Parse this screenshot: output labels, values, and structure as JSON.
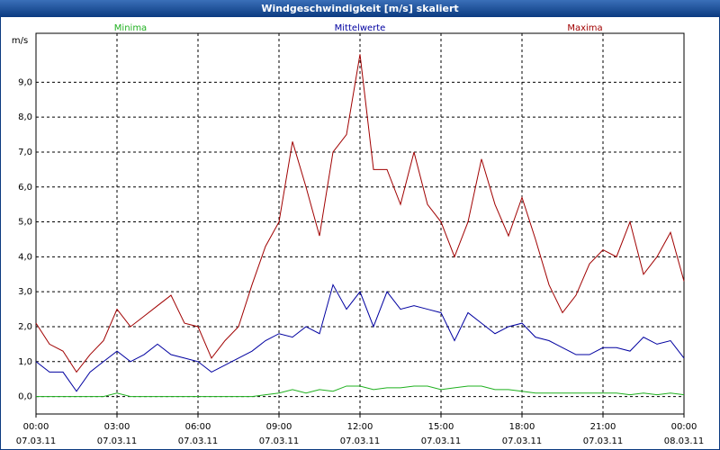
{
  "chart_data": {
    "type": "line",
    "title": "Windgeschwindigkeit [m/s] skaliert",
    "ylabel": "m/s",
    "legend": "top",
    "grid": true,
    "x": [
      0,
      0.5,
      1,
      1.5,
      2,
      2.5,
      3,
      3.5,
      4,
      4.5,
      5,
      5.5,
      6,
      6.5,
      7,
      7.5,
      8,
      8.5,
      9,
      9.5,
      10,
      10.5,
      11,
      11.5,
      12,
      12.5,
      13,
      13.5,
      14,
      14.5,
      15,
      15.5,
      16,
      16.5,
      17,
      17.5,
      18,
      18.5,
      19,
      19.5,
      20,
      20.5,
      21,
      21.5,
      22,
      22.5,
      23,
      23.5,
      24
    ],
    "xlim": [
      0,
      24
    ],
    "xticks": [
      {
        "value": 0,
        "label": "00:00\n07.03.11"
      },
      {
        "value": 3,
        "label": "03:00\n07.03.11"
      },
      {
        "value": 6,
        "label": "06:00\n07.03.11"
      },
      {
        "value": 9,
        "label": "09:00\n07.03.11"
      },
      {
        "value": 12,
        "label": "12:00\n07.03.11"
      },
      {
        "value": 15,
        "label": "15:00\n07.03.11"
      },
      {
        "value": 18,
        "label": "18:00\n07.03.11"
      },
      {
        "value": 21,
        "label": "21:00\n07.03.11"
      },
      {
        "value": 24,
        "label": "00:00\n08.03.11"
      }
    ],
    "ylim": [
      -0.5,
      10.4
    ],
    "yticks": [
      {
        "value": 0,
        "label": "0,0"
      },
      {
        "value": 1,
        "label": "1,0"
      },
      {
        "value": 2,
        "label": "2,0"
      },
      {
        "value": 3,
        "label": "3,0"
      },
      {
        "value": 4,
        "label": "4,0"
      },
      {
        "value": 5,
        "label": "5,0"
      },
      {
        "value": 6,
        "label": "6,0"
      },
      {
        "value": 7,
        "label": "7,0"
      },
      {
        "value": 8,
        "label": "8,0"
      },
      {
        "value": 9,
        "label": "9,0"
      }
    ],
    "series": [
      {
        "name": "Minima",
        "color": "#1fb01f",
        "values": [
          0,
          0,
          0,
          0,
          0,
          0,
          0.1,
          0,
          0,
          0,
          0,
          0,
          0,
          0,
          0,
          0,
          0,
          0.05,
          0.1,
          0.2,
          0.1,
          0.2,
          0.15,
          0.3,
          0.3,
          0.2,
          0.25,
          0.25,
          0.3,
          0.3,
          0.2,
          0.25,
          0.3,
          0.3,
          0.2,
          0.2,
          0.15,
          0.1,
          0.1,
          0.1,
          0.1,
          0.1,
          0.1,
          0.1,
          0.05,
          0.1,
          0.05,
          0.1,
          0.05
        ]
      },
      {
        "name": "Mittelwerte",
        "color": "#0000a0",
        "values": [
          1.0,
          0.7,
          0.7,
          0.15,
          0.7,
          1.0,
          1.3,
          1.0,
          1.2,
          1.5,
          1.2,
          1.1,
          1.0,
          0.7,
          0.9,
          1.1,
          1.3,
          1.6,
          1.8,
          1.7,
          2.0,
          1.8,
          3.2,
          2.5,
          3.0,
          2.0,
          3.0,
          2.5,
          2.6,
          2.5,
          2.4,
          1.6,
          2.4,
          2.1,
          1.8,
          2.0,
          2.1,
          1.7,
          1.6,
          1.4,
          1.2,
          1.2,
          1.4,
          1.4,
          1.3,
          1.7,
          1.5,
          1.6,
          1.1
        ]
      },
      {
        "name": "Maxima",
        "color": "#a00000",
        "values": [
          2.1,
          1.5,
          1.3,
          0.7,
          1.2,
          1.6,
          2.5,
          2.0,
          2.3,
          2.6,
          2.9,
          2.1,
          2.0,
          1.1,
          1.6,
          2.0,
          3.2,
          4.3,
          5.0,
          7.3,
          6.0,
          4.6,
          7.0,
          7.5,
          9.8,
          6.5,
          6.5,
          5.5,
          7.0,
          5.5,
          5.0,
          4.0,
          5.0,
          6.8,
          5.5,
          4.6,
          5.7,
          4.5,
          3.2,
          2.4,
          2.9,
          3.8,
          4.2,
          4.0,
          5.0,
          3.5,
          4.0,
          4.7,
          3.3
        ]
      }
    ]
  }
}
